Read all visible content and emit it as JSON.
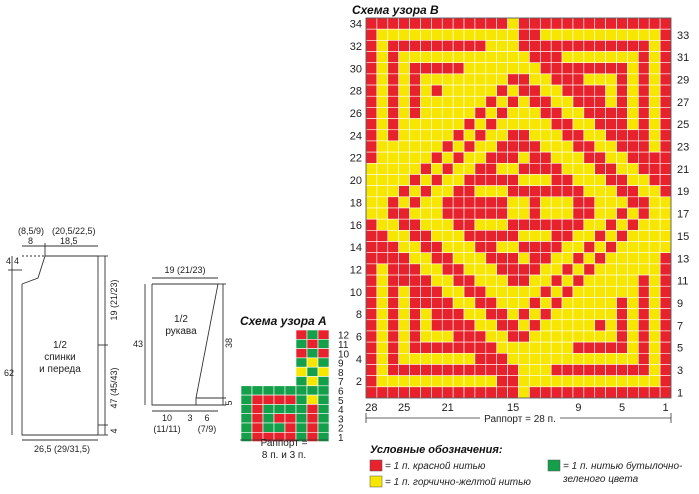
{
  "colors": {
    "red": "#e8222c",
    "yellow": "#f6e600",
    "green": "#14a04a"
  },
  "pattern_b": {
    "title": "Схема узора B",
    "row_labels_left": [
      "34",
      "32",
      "30",
      "28",
      "26",
      "24",
      "22",
      "20",
      "18",
      "16",
      "14",
      "12",
      "10",
      "8",
      "6",
      "4",
      "2"
    ],
    "row_labels_right": [
      "33",
      "31",
      "29",
      "27",
      "25",
      "23",
      "21",
      "19",
      "17",
      "15",
      "13",
      "11",
      "9",
      "7",
      "5",
      "3",
      "1"
    ],
    "col_labels": [
      "28",
      "25",
      "21",
      "15",
      "9",
      "5",
      "1"
    ],
    "repeat": "Раппорт = 28 п."
  },
  "pattern_a": {
    "title": "Схема узора A",
    "row_labels": [
      "12",
      "11",
      "10",
      "9",
      "8",
      "7",
      "6",
      "5",
      "4",
      "3",
      "2",
      "1"
    ],
    "repeat_line1": "Раппорт =",
    "repeat_line2": "8 п. и 3 п."
  },
  "legend": {
    "title": "Условные обозначения:",
    "items": [
      {
        "color": "red",
        "text": "= 1 п. красной нитью"
      },
      {
        "color": "yellow",
        "text": "= 1 п. горчично-желтой нитью"
      },
      {
        "color": "green",
        "text": "= 1 п. нитью бутылочно-",
        "text2": "зеленого цвета"
      }
    ]
  },
  "body_pattern": {
    "label1": "1/2",
    "label2": "спинки",
    "label3": "и переда",
    "top_left1": "(8,5/9)",
    "top_left2": "8",
    "top_right1": "(20,5/22,5)",
    "top_right2": "18,5",
    "left_a": "4",
    "left_b": "4",
    "height": "62",
    "right_top": "19 (21/23)",
    "right_mid": "47 (45/43)",
    "right_bot": "4",
    "bottom": "26,5 (29/31,5)"
  },
  "sleeve_pattern": {
    "label1": "1/2",
    "label2": "рукава",
    "top": "19 (21/23)",
    "left": "43",
    "right_top": "38",
    "right_bot": "5",
    "bottom_a": "10",
    "bottom_a2": "(11/11)",
    "bottom_b": "3",
    "bottom_c": "6",
    "bottom_c2": "(7/9)"
  }
}
